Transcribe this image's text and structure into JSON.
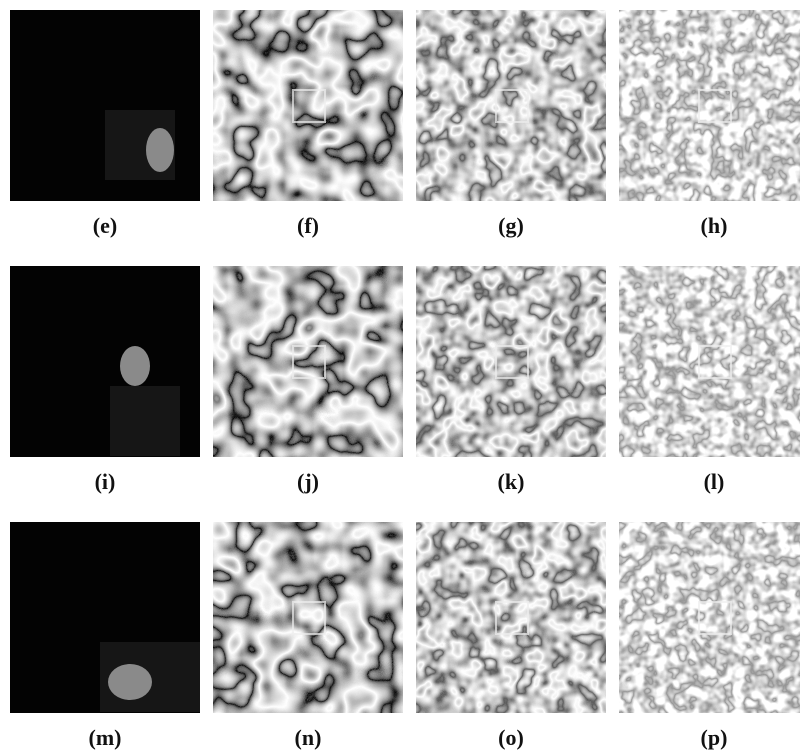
{
  "figure": {
    "rows": [
      [
        "(e)",
        "(f)",
        "(g)",
        "(h)"
      ],
      [
        "(i)",
        "(j)",
        "(k)",
        "(l)"
      ],
      [
        "(m)",
        "(n)",
        "(o)",
        "(p)"
      ]
    ]
  }
}
